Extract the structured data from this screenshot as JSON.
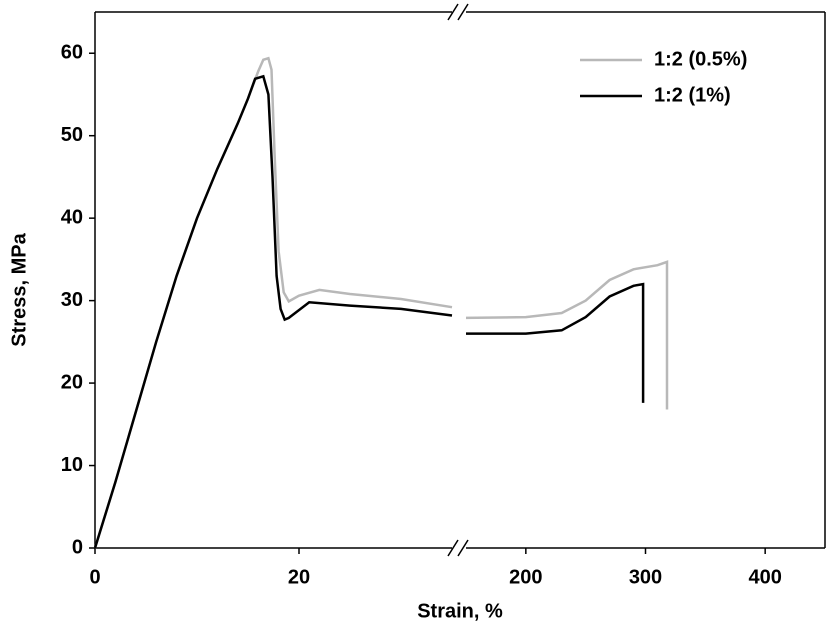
{
  "chart_data": {
    "type": "line",
    "xlabel": "Strain, %",
    "ylabel": "Stress, MPa",
    "ylim": [
      0,
      65
    ],
    "yticks": [
      0,
      10,
      20,
      30,
      40,
      50,
      60
    ],
    "x_segments": [
      {
        "xlim": [
          0,
          35
        ],
        "xticks": [
          0,
          20
        ]
      },
      {
        "xlim": [
          150,
          450
        ],
        "xticks": [
          200,
          300,
          400
        ]
      }
    ],
    "legend": "upper right",
    "series": [
      {
        "name": "1:2 (0.5%)",
        "color": "#b8b8b8",
        "x": [
          0,
          2,
          4,
          6,
          8,
          10,
          12,
          14,
          15,
          16,
          16.5,
          17,
          17.3,
          17.6,
          18,
          18.5,
          19,
          20,
          22,
          25,
          30,
          35,
          null,
          150,
          200,
          230,
          250,
          270,
          290,
          310,
          318,
          318
        ],
        "values": [
          0,
          8,
          16.5,
          25,
          33,
          40,
          46,
          51.5,
          54.5,
          57.8,
          59.2,
          59.4,
          58,
          48,
          36,
          31,
          29.9,
          30.6,
          31.3,
          30.8,
          30.2,
          29.2,
          null,
          27.9,
          28,
          28.5,
          30,
          32.5,
          33.8,
          34.3,
          34.7,
          16.8
        ]
      },
      {
        "name": "1:2 (1%)",
        "color": "#000000",
        "x": [
          0,
          2,
          4,
          6,
          8,
          10,
          12,
          14,
          15,
          15.7,
          16.5,
          17,
          17.4,
          17.8,
          18.2,
          18.6,
          19,
          21,
          25,
          30,
          35,
          null,
          150,
          200,
          230,
          250,
          270,
          290,
          298,
          298
        ],
        "values": [
          0,
          8,
          16.5,
          25,
          33,
          40,
          46,
          51.5,
          54.5,
          56.9,
          57.2,
          55,
          45,
          33,
          29,
          27.7,
          27.9,
          29.8,
          29.4,
          29,
          28.2,
          null,
          26,
          26,
          26.4,
          28,
          30.5,
          31.8,
          32,
          17.6
        ]
      }
    ]
  }
}
